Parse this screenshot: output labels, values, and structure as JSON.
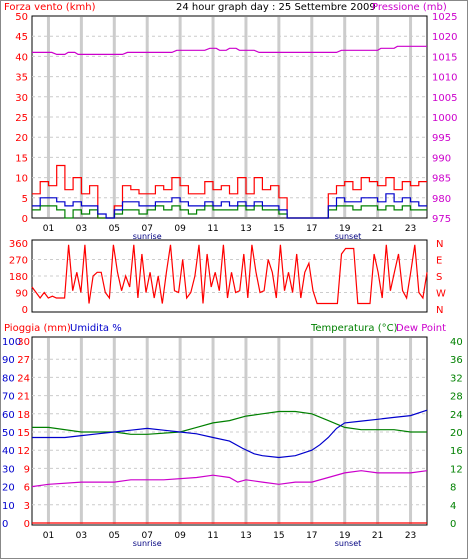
{
  "header": {
    "left_label": "Forza vento (kmh)",
    "title": "24 hour graph day : 25 Settembre 2009",
    "right_label": "Pressione (mb)"
  },
  "bottom_header": {
    "rain_label": "Pioggia (mm)",
    "humidity_label": "Umidita %",
    "temp_label": "Temperatura (°C)",
    "dew_label": "Dew Point"
  },
  "hour_labels": [
    "01",
    "03",
    "05",
    "07",
    "09",
    "11",
    "13",
    "15",
    "17",
    "19",
    "21",
    "23"
  ],
  "sunrise_label": "sunrise",
  "sunset_label": "sunset",
  "chart_data": [
    {
      "type": "line",
      "name": "wind_pressure",
      "x_range": [
        0,
        24
      ],
      "left_axis": {
        "ticks": [
          0,
          5,
          10,
          15,
          20,
          25,
          30,
          35,
          40,
          45,
          50
        ],
        "ylim": [
          0,
          50
        ],
        "color": "#ff0000"
      },
      "right_axis": {
        "ticks": [
          975,
          980,
          985,
          990,
          995,
          1000,
          1005,
          1010,
          1015,
          1020,
          1025
        ],
        "ylim": [
          975,
          1025
        ],
        "color": "#cc00cc"
      },
      "wind_gust": [
        6,
        9,
        8,
        13,
        7,
        10,
        6,
        8,
        0,
        0,
        3,
        8,
        7,
        6,
        6,
        8,
        7,
        10,
        8,
        6,
        6,
        9,
        7,
        8,
        6,
        10,
        6,
        10,
        7,
        8,
        5,
        0,
        0,
        0,
        0,
        0,
        6,
        8,
        9,
        7,
        10,
        9,
        8,
        10,
        7,
        9,
        8,
        9
      ],
      "wind_avg": [
        3,
        5,
        5,
        4,
        3,
        4,
        3,
        3,
        1,
        0,
        2,
        4,
        4,
        3,
        3,
        4,
        4,
        5,
        4,
        3,
        3,
        4,
        3,
        4,
        3,
        4,
        3,
        4,
        3,
        3,
        2,
        0,
        0,
        0,
        0,
        0,
        3,
        5,
        4,
        4,
        5,
        5,
        4,
        6,
        4,
        5,
        4,
        3
      ],
      "wind_low": [
        2,
        3,
        3,
        2,
        0,
        2,
        1,
        2,
        0,
        0,
        1,
        2,
        2,
        1,
        2,
        3,
        2,
        3,
        2,
        1,
        2,
        3,
        2,
        2,
        2,
        3,
        2,
        3,
        2,
        2,
        1,
        0,
        0,
        0,
        0,
        0,
        2,
        3,
        3,
        2,
        3,
        3,
        2,
        3,
        2,
        3,
        2,
        2
      ],
      "pressure": [
        [
          0,
          1016
        ],
        [
          1.2,
          1016
        ],
        [
          1.5,
          1015.5
        ],
        [
          2,
          1015.5
        ],
        [
          2.2,
          1016
        ],
        [
          2.6,
          1016
        ],
        [
          2.8,
          1015.5
        ],
        [
          5.5,
          1015.5
        ],
        [
          5.8,
          1016
        ],
        [
          8.5,
          1016
        ],
        [
          8.8,
          1016.5
        ],
        [
          10.5,
          1016.5
        ],
        [
          10.8,
          1017
        ],
        [
          11.2,
          1017
        ],
        [
          11.4,
          1016.5
        ],
        [
          11.8,
          1016.5
        ],
        [
          12,
          1017
        ],
        [
          12.4,
          1017
        ],
        [
          12.6,
          1016.5
        ],
        [
          13.5,
          1016.5
        ],
        [
          13.8,
          1016
        ],
        [
          18.5,
          1016
        ],
        [
          18.8,
          1016.5
        ],
        [
          21,
          1016.5
        ],
        [
          21.2,
          1017
        ],
        [
          22,
          1017
        ],
        [
          22.2,
          1017.5
        ],
        [
          24,
          1017.5
        ]
      ]
    },
    {
      "type": "line",
      "name": "wind_direction",
      "x_range": [
        0,
        24
      ],
      "left_axis": {
        "ticks": [
          0,
          90,
          180,
          270,
          360
        ],
        "ylim": [
          0,
          360
        ],
        "color": "#ff0000"
      },
      "right_labels": [
        "N",
        "W",
        "S",
        "E",
        "N"
      ],
      "direction": [
        120,
        90,
        60,
        90,
        60,
        70,
        60,
        60,
        60,
        350,
        100,
        200,
        90,
        350,
        30,
        180,
        200,
        200,
        90,
        60,
        350,
        200,
        100,
        180,
        120,
        350,
        60,
        300,
        90,
        200,
        60,
        180,
        30,
        200,
        350,
        100,
        90,
        270,
        60,
        90,
        180,
        350,
        30,
        300,
        120,
        200,
        100,
        350,
        60,
        200,
        90,
        100,
        300,
        60,
        350,
        200,
        90,
        100,
        270,
        200,
        60,
        350,
        100,
        200,
        90,
        300,
        60,
        200,
        250,
        100,
        30,
        30,
        30,
        30,
        30,
        30,
        300,
        330,
        330,
        330,
        30,
        30,
        30,
        30,
        300,
        200,
        60,
        350,
        100,
        200,
        300,
        100,
        60,
        200,
        350,
        90,
        60,
        200
      ],
      "ylabel_color": "#ff0000"
    },
    {
      "type": "line",
      "name": "rain_humidity_temp",
      "x_range": [
        0,
        24
      ],
      "left_rain_axis": {
        "ticks": [
          0,
          3,
          6,
          9,
          12,
          15,
          18,
          21,
          24,
          27,
          30
        ],
        "ylim": [
          0,
          30
        ],
        "color": "#ff0000"
      },
      "left_humidity_axis": {
        "ticks": [
          0,
          10,
          20,
          30,
          40,
          50,
          60,
          70,
          80,
          90,
          100
        ],
        "ylim": [
          0,
          100
        ],
        "color": "#0000cc"
      },
      "right_temp_axis": {
        "ticks": [
          0,
          4,
          8,
          12,
          16,
          20,
          24,
          28,
          32,
          36,
          40
        ],
        "ylim": [
          0,
          40
        ],
        "color": "#008000"
      },
      "rain": [
        [
          0,
          0
        ],
        [
          24,
          0
        ]
      ],
      "humidity": [
        [
          0,
          47
        ],
        [
          2,
          47
        ],
        [
          3,
          48
        ],
        [
          4,
          49
        ],
        [
          5,
          50
        ],
        [
          6,
          51
        ],
        [
          7,
          52
        ],
        [
          8,
          51
        ],
        [
          9,
          50
        ],
        [
          10,
          49
        ],
        [
          11,
          47
        ],
        [
          12,
          45
        ],
        [
          12.8,
          41
        ],
        [
          13.5,
          38
        ],
        [
          14,
          37
        ],
        [
          15,
          36
        ],
        [
          16,
          37
        ],
        [
          17,
          40
        ],
        [
          17.5,
          43
        ],
        [
          18,
          47
        ],
        [
          18.5,
          52
        ],
        [
          19,
          55
        ],
        [
          20,
          56
        ],
        [
          21,
          57
        ],
        [
          22,
          58
        ],
        [
          23,
          59
        ],
        [
          24,
          62
        ]
      ],
      "temperature": [
        [
          0,
          21
        ],
        [
          1,
          21
        ],
        [
          3,
          20
        ],
        [
          5,
          20
        ],
        [
          6,
          19.5
        ],
        [
          7,
          19.5
        ],
        [
          9,
          20
        ],
        [
          10,
          21
        ],
        [
          11,
          22
        ],
        [
          12,
          22.5
        ],
        [
          13,
          23.5
        ],
        [
          14,
          24
        ],
        [
          15,
          24.5
        ],
        [
          16,
          24.5
        ],
        [
          17,
          24
        ],
        [
          18,
          22.5
        ],
        [
          19,
          21
        ],
        [
          20,
          20.5
        ],
        [
          21,
          20.5
        ],
        [
          22,
          20.5
        ],
        [
          23,
          20
        ],
        [
          24,
          20
        ]
      ],
      "dew_point": [
        [
          0,
          8
        ],
        [
          1,
          8.5
        ],
        [
          3,
          9
        ],
        [
          5,
          9
        ],
        [
          6,
          9.5
        ],
        [
          8,
          9.5
        ],
        [
          10,
          10
        ],
        [
          11,
          10.5
        ],
        [
          12,
          10
        ],
        [
          12.5,
          9
        ],
        [
          13,
          9.5
        ],
        [
          14,
          9
        ],
        [
          15,
          8.5
        ],
        [
          16,
          9
        ],
        [
          17,
          9
        ],
        [
          18,
          10
        ],
        [
          19,
          11
        ],
        [
          20,
          11.5
        ],
        [
          21,
          11
        ],
        [
          22,
          11
        ],
        [
          23,
          11
        ],
        [
          24,
          11.5
        ]
      ],
      "colors": {
        "rain": "#ff0000",
        "humidity": "#0000cc",
        "temperature": "#008000",
        "dew_point": "#cc00cc"
      }
    }
  ]
}
